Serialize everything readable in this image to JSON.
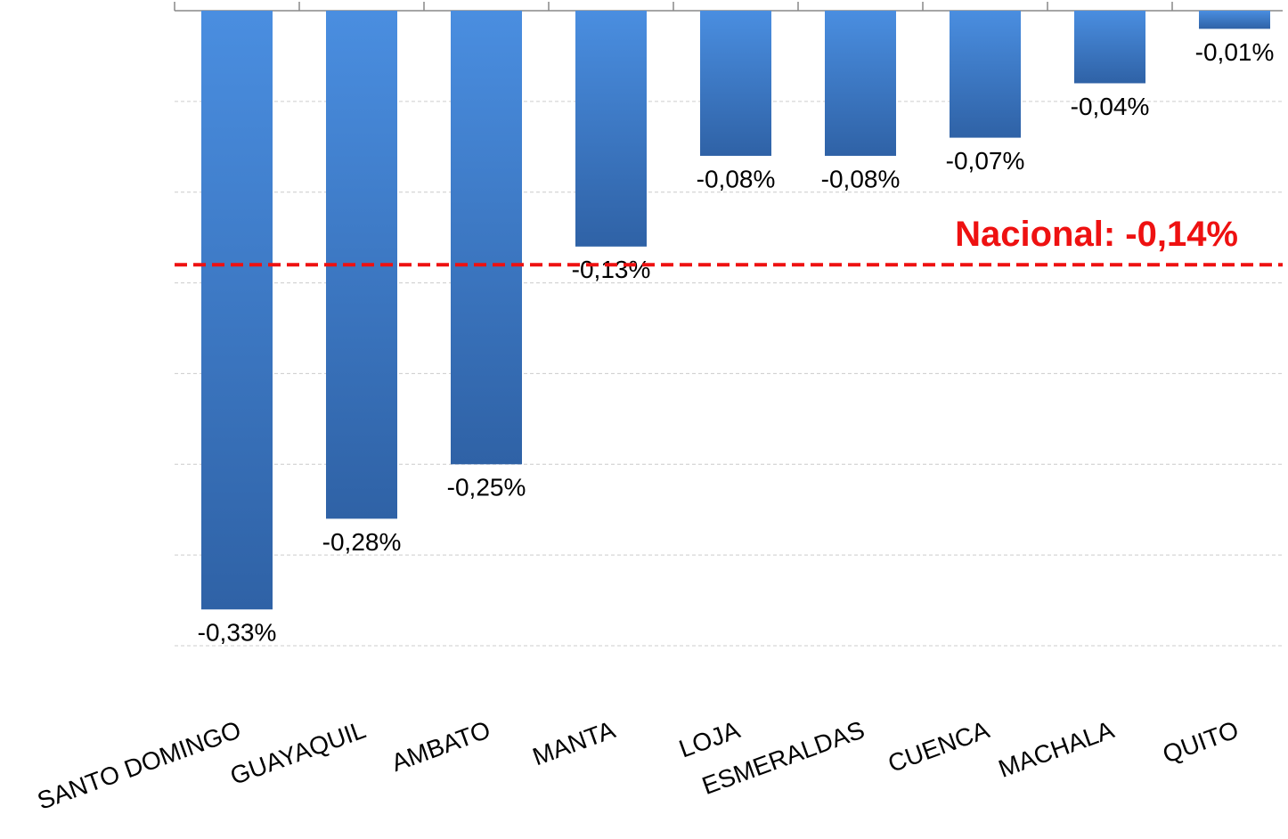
{
  "chart_data": {
    "type": "bar",
    "categories": [
      "SANTO DOMINGO",
      "GUAYAQUIL",
      "AMBATO",
      "MANTA",
      "LOJA",
      "ESMERALDAS",
      "CUENCA",
      "MACHALA",
      "QUITO"
    ],
    "values": [
      -0.33,
      -0.28,
      -0.25,
      -0.13,
      -0.08,
      -0.08,
      -0.07,
      -0.04,
      -0.01
    ],
    "value_labels": [
      "-0,33%",
      "-0,28%",
      "-0,25%",
      "-0,13%",
      "-0,08%",
      "-0,08%",
      "-0,07%",
      "-0,04%",
      "-0,01%"
    ],
    "color": "#3f7fd4",
    "ylim": [
      -0.35,
      0
    ],
    "yticks": [
      0,
      -0.05,
      -0.1,
      -0.15,
      -0.2,
      -0.25,
      -0.3,
      -0.35
    ],
    "grid": true,
    "reference_line": {
      "value": -0.14,
      "label": "Nacional: -0,14%",
      "color": "#ee1111"
    }
  }
}
